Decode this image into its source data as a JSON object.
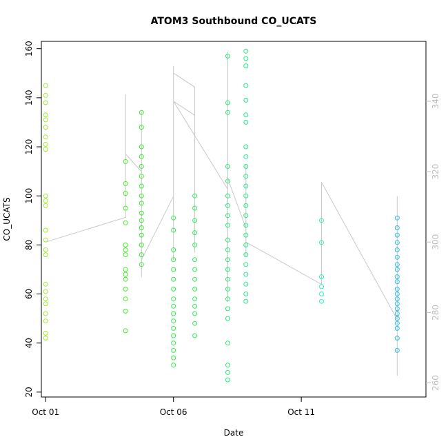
{
  "chart_data": {
    "type": "scatter",
    "title": "ATOM3 Southbound CO_UCATS",
    "xlabel": "Date",
    "ylabel": "CO_UCATS",
    "x_ticks": [
      "Oct 01",
      "Oct 06",
      "Oct 11"
    ],
    "y_ticks": [
      20,
      40,
      60,
      80,
      100,
      120,
      140,
      160
    ],
    "y2_ticks": [
      260,
      280,
      300,
      320,
      340
    ],
    "xlim": [
      "2016-09-30T20:00",
      "2016-10-15T21:00"
    ],
    "ylim": [
      18,
      163
    ],
    "y2lim": [
      256,
      357
    ],
    "grid": false,
    "legend": "none",
    "colors": {
      "secondary_line": "#c8c8c8",
      "right_axis": "#bdbdbd",
      "color_ramp": [
        "#a0ee2a",
        "#33ee22",
        "#22ee77",
        "#22eecc",
        "#22aaee"
      ]
    },
    "series": [
      {
        "type": "scatter",
        "marker": "open-circle",
        "points": [
          {
            "t": "2016-10-01T00:00",
            "y": 145
          },
          {
            "t": "2016-10-01T00:00",
            "y": 141
          },
          {
            "t": "2016-10-01T00:00",
            "y": 138
          },
          {
            "t": "2016-10-01T00:00",
            "y": 133
          },
          {
            "t": "2016-10-01T00:00",
            "y": 131
          },
          {
            "t": "2016-10-01T00:00",
            "y": 128
          },
          {
            "t": "2016-10-01T00:00",
            "y": 124
          },
          {
            "t": "2016-10-01T00:00",
            "y": 121
          },
          {
            "t": "2016-10-01T00:00",
            "y": 119
          },
          {
            "t": "2016-10-01T00:00",
            "y": 100
          },
          {
            "t": "2016-10-01T00:00",
            "y": 98
          },
          {
            "t": "2016-10-01T00:00",
            "y": 96
          },
          {
            "t": "2016-10-01T00:00",
            "y": 86
          },
          {
            "t": "2016-10-01T00:00",
            "y": 82
          },
          {
            "t": "2016-10-01T00:00",
            "y": 78
          },
          {
            "t": "2016-10-01T00:00",
            "y": 76
          },
          {
            "t": "2016-10-01T00:00",
            "y": 64
          },
          {
            "t": "2016-10-01T00:00",
            "y": 61
          },
          {
            "t": "2016-10-01T00:00",
            "y": 58
          },
          {
            "t": "2016-10-01T00:00",
            "y": 56
          },
          {
            "t": "2016-10-01T00:00",
            "y": 52
          },
          {
            "t": "2016-10-01T00:00",
            "y": 49
          },
          {
            "t": "2016-10-01T00:00",
            "y": 44
          },
          {
            "t": "2016-10-01T00:00",
            "y": 42
          },
          {
            "t": "2016-10-04T03:00",
            "y": 114
          },
          {
            "t": "2016-10-04T03:00",
            "y": 105
          },
          {
            "t": "2016-10-04T03:00",
            "y": 101
          },
          {
            "t": "2016-10-04T03:00",
            "y": 95
          },
          {
            "t": "2016-10-04T03:00",
            "y": 89
          },
          {
            "t": "2016-10-04T03:00",
            "y": 80
          },
          {
            "t": "2016-10-04T03:00",
            "y": 78
          },
          {
            "t": "2016-10-04T03:00",
            "y": 76
          },
          {
            "t": "2016-10-04T03:00",
            "y": 70
          },
          {
            "t": "2016-10-04T03:00",
            "y": 68
          },
          {
            "t": "2016-10-04T03:00",
            "y": 66
          },
          {
            "t": "2016-10-04T03:00",
            "y": 62
          },
          {
            "t": "2016-10-04T03:00",
            "y": 58
          },
          {
            "t": "2016-10-04T03:00",
            "y": 53
          },
          {
            "t": "2016-10-04T03:00",
            "y": 45
          },
          {
            "t": "2016-10-04T18:00",
            "y": 134
          },
          {
            "t": "2016-10-04T18:00",
            "y": 128
          },
          {
            "t": "2016-10-04T18:00",
            "y": 120
          },
          {
            "t": "2016-10-04T18:00",
            "y": 116
          },
          {
            "t": "2016-10-04T18:00",
            "y": 112
          },
          {
            "t": "2016-10-04T18:00",
            "y": 108
          },
          {
            "t": "2016-10-04T18:00",
            "y": 104
          },
          {
            "t": "2016-10-04T18:00",
            "y": 100
          },
          {
            "t": "2016-10-04T18:00",
            "y": 97
          },
          {
            "t": "2016-10-04T18:00",
            "y": 93
          },
          {
            "t": "2016-10-04T18:00",
            "y": 90
          },
          {
            "t": "2016-10-04T18:00",
            "y": 87
          },
          {
            "t": "2016-10-04T18:00",
            "y": 84
          },
          {
            "t": "2016-10-04T18:00",
            "y": 80
          },
          {
            "t": "2016-10-04T18:00",
            "y": 76
          },
          {
            "t": "2016-10-04T18:00",
            "y": 72
          },
          {
            "t": "2016-10-06T00:00",
            "y": 91
          },
          {
            "t": "2016-10-06T00:00",
            "y": 86
          },
          {
            "t": "2016-10-06T00:00",
            "y": 78
          },
          {
            "t": "2016-10-06T00:00",
            "y": 74
          },
          {
            "t": "2016-10-06T00:00",
            "y": 70
          },
          {
            "t": "2016-10-06T00:00",
            "y": 66
          },
          {
            "t": "2016-10-06T00:00",
            "y": 62
          },
          {
            "t": "2016-10-06T00:00",
            "y": 58
          },
          {
            "t": "2016-10-06T00:00",
            "y": 55
          },
          {
            "t": "2016-10-06T00:00",
            "y": 52
          },
          {
            "t": "2016-10-06T00:00",
            "y": 49
          },
          {
            "t": "2016-10-06T00:00",
            "y": 46
          },
          {
            "t": "2016-10-06T00:00",
            "y": 43
          },
          {
            "t": "2016-10-06T00:00",
            "y": 40
          },
          {
            "t": "2016-10-06T00:00",
            "y": 37
          },
          {
            "t": "2016-10-06T00:00",
            "y": 34
          },
          {
            "t": "2016-10-06T00:00",
            "y": 31
          },
          {
            "t": "2016-10-06T20:00",
            "y": 100
          },
          {
            "t": "2016-10-06T20:00",
            "y": 95
          },
          {
            "t": "2016-10-06T20:00",
            "y": 90
          },
          {
            "t": "2016-10-06T20:00",
            "y": 85
          },
          {
            "t": "2016-10-06T20:00",
            "y": 80
          },
          {
            "t": "2016-10-06T20:00",
            "y": 74
          },
          {
            "t": "2016-10-06T20:00",
            "y": 70
          },
          {
            "t": "2016-10-06T20:00",
            "y": 66
          },
          {
            "t": "2016-10-06T20:00",
            "y": 62
          },
          {
            "t": "2016-10-06T20:00",
            "y": 58
          },
          {
            "t": "2016-10-06T20:00",
            "y": 55
          },
          {
            "t": "2016-10-06T20:00",
            "y": 52
          },
          {
            "t": "2016-10-06T20:00",
            "y": 48
          },
          {
            "t": "2016-10-06T20:00",
            "y": 43
          },
          {
            "t": "2016-10-08T03:00",
            "y": 157
          },
          {
            "t": "2016-10-08T03:00",
            "y": 138
          },
          {
            "t": "2016-10-08T03:00",
            "y": 134
          },
          {
            "t": "2016-10-08T03:00",
            "y": 112
          },
          {
            "t": "2016-10-08T03:00",
            "y": 106
          },
          {
            "t": "2016-10-08T03:00",
            "y": 100
          },
          {
            "t": "2016-10-08T03:00",
            "y": 96
          },
          {
            "t": "2016-10-08T03:00",
            "y": 92
          },
          {
            "t": "2016-10-08T03:00",
            "y": 88
          },
          {
            "t": "2016-10-08T03:00",
            "y": 82
          },
          {
            "t": "2016-10-08T03:00",
            "y": 78
          },
          {
            "t": "2016-10-08T03:00",
            "y": 74
          },
          {
            "t": "2016-10-08T03:00",
            "y": 70
          },
          {
            "t": "2016-10-08T03:00",
            "y": 66
          },
          {
            "t": "2016-10-08T03:00",
            "y": 62
          },
          {
            "t": "2016-10-08T03:00",
            "y": 58
          },
          {
            "t": "2016-10-08T03:00",
            "y": 54
          },
          {
            "t": "2016-10-08T03:00",
            "y": 50
          },
          {
            "t": "2016-10-08T03:00",
            "y": 40
          },
          {
            "t": "2016-10-08T03:00",
            "y": 31
          },
          {
            "t": "2016-10-08T03:00",
            "y": 28
          },
          {
            "t": "2016-10-08T03:00",
            "y": 25
          },
          {
            "t": "2016-10-08T20:00",
            "y": 159
          },
          {
            "t": "2016-10-08T20:00",
            "y": 156
          },
          {
            "t": "2016-10-08T20:00",
            "y": 153
          },
          {
            "t": "2016-10-08T20:00",
            "y": 145
          },
          {
            "t": "2016-10-08T20:00",
            "y": 139
          },
          {
            "t": "2016-10-08T20:00",
            "y": 133
          },
          {
            "t": "2016-10-08T20:00",
            "y": 130
          },
          {
            "t": "2016-10-08T20:00",
            "y": 120
          },
          {
            "t": "2016-10-08T20:00",
            "y": 116
          },
          {
            "t": "2016-10-08T20:00",
            "y": 112
          },
          {
            "t": "2016-10-08T20:00",
            "y": 108
          },
          {
            "t": "2016-10-08T20:00",
            "y": 104
          },
          {
            "t": "2016-10-08T20:00",
            "y": 100
          },
          {
            "t": "2016-10-08T20:00",
            "y": 96
          },
          {
            "t": "2016-10-08T20:00",
            "y": 92
          },
          {
            "t": "2016-10-08T20:00",
            "y": 88
          },
          {
            "t": "2016-10-08T20:00",
            "y": 84
          },
          {
            "t": "2016-10-08T20:00",
            "y": 80
          },
          {
            "t": "2016-10-08T20:00",
            "y": 76
          },
          {
            "t": "2016-10-08T20:00",
            "y": 72
          },
          {
            "t": "2016-10-08T20:00",
            "y": 68
          },
          {
            "t": "2016-10-08T20:00",
            "y": 64
          },
          {
            "t": "2016-10-08T20:00",
            "y": 60
          },
          {
            "t": "2016-10-08T20:00",
            "y": 57
          },
          {
            "t": "2016-10-11T19:00",
            "y": 90
          },
          {
            "t": "2016-10-11T19:00",
            "y": 81
          },
          {
            "t": "2016-10-11T19:00",
            "y": 67
          },
          {
            "t": "2016-10-11T19:00",
            "y": 63
          },
          {
            "t": "2016-10-11T19:00",
            "y": 60
          },
          {
            "t": "2016-10-11T19:00",
            "y": 57
          },
          {
            "t": "2016-10-14T18:00",
            "y": 91
          },
          {
            "t": "2016-10-14T18:00",
            "y": 87
          },
          {
            "t": "2016-10-14T18:00",
            "y": 84
          },
          {
            "t": "2016-10-14T18:00",
            "y": 81
          },
          {
            "t": "2016-10-14T18:00",
            "y": 78
          },
          {
            "t": "2016-10-14T18:00",
            "y": 75
          },
          {
            "t": "2016-10-14T18:00",
            "y": 72
          },
          {
            "t": "2016-10-14T18:00",
            "y": 70
          },
          {
            "t": "2016-10-14T18:00",
            "y": 67
          },
          {
            "t": "2016-10-14T18:00",
            "y": 65
          },
          {
            "t": "2016-10-14T18:00",
            "y": 62
          },
          {
            "t": "2016-10-14T18:00",
            "y": 60
          },
          {
            "t": "2016-10-14T18:00",
            "y": 58
          },
          {
            "t": "2016-10-14T18:00",
            "y": 56
          },
          {
            "t": "2016-10-14T18:00",
            "y": 54
          },
          {
            "t": "2016-10-14T18:00",
            "y": 52
          },
          {
            "t": "2016-10-14T18:00",
            "y": 50
          },
          {
            "t": "2016-10-14T18:00",
            "y": 48
          },
          {
            "t": "2016-10-14T18:00",
            "y": 46
          },
          {
            "t": "2016-10-14T18:00",
            "y": 42
          },
          {
            "t": "2016-10-14T18:00",
            "y": 37
          }
        ]
      },
      {
        "type": "line",
        "axis": "right",
        "points": [
          {
            "t": "2016-10-01T00:00",
            "y": 300
          },
          {
            "t": "2016-10-04T03:00",
            "y": 307
          },
          {
            "t": "2016-10-04T03:00",
            "y": 342
          },
          {
            "t": "2016-10-04T03:00",
            "y": 325
          },
          {
            "t": "2016-10-04T18:00",
            "y": 320
          },
          {
            "t": "2016-10-04T18:00",
            "y": 337
          },
          {
            "t": "2016-10-04T18:00",
            "y": 297
          },
          {
            "t": "2016-10-04T18:00",
            "y": 330
          },
          {
            "t": "2016-10-04T18:00",
            "y": 294
          },
          {
            "t": "2016-10-04T18:00",
            "y": 334
          },
          {
            "t": "2016-10-04T18:00",
            "y": 290
          },
          {
            "t": "2016-10-04T18:00",
            "y": 322
          },
          {
            "t": "2016-10-04T18:00",
            "y": 295
          },
          {
            "t": "2016-10-06T00:00",
            "y": 313
          },
          {
            "t": "2016-10-06T00:00",
            "y": 347
          },
          {
            "t": "2016-10-06T00:00",
            "y": 295
          },
          {
            "t": "2016-10-06T00:00",
            "y": 350
          },
          {
            "t": "2016-10-06T00:00",
            "y": 306
          },
          {
            "t": "2016-10-06T00:00",
            "y": 341
          },
          {
            "t": "2016-10-06T00:00",
            "y": 299
          },
          {
            "t": "2016-10-06T00:00",
            "y": 339
          },
          {
            "t": "2016-10-06T00:00",
            "y": 348
          },
          {
            "t": "2016-10-06T20:00",
            "y": 344
          },
          {
            "t": "2016-10-06T20:00",
            "y": 301
          },
          {
            "t": "2016-10-06T20:00",
            "y": 338
          },
          {
            "t": "2016-10-06T20:00",
            "y": 297
          },
          {
            "t": "2016-10-06T20:00",
            "y": 343
          },
          {
            "t": "2016-10-06T20:00",
            "y": 303
          },
          {
            "t": "2016-10-06T20:00",
            "y": 336
          },
          {
            "t": "2016-10-06T00:00",
            "y": 340
          },
          {
            "t": "2016-10-08T03:00",
            "y": 315
          },
          {
            "t": "2016-10-08T03:00",
            "y": 354
          },
          {
            "t": "2016-10-08T03:00",
            "y": 283
          },
          {
            "t": "2016-10-08T03:00",
            "y": 318
          },
          {
            "t": "2016-10-08T20:00",
            "y": 304
          },
          {
            "t": "2016-10-08T20:00",
            "y": 322
          },
          {
            "t": "2016-10-08T20:00",
            "y": 296
          },
          {
            "t": "2016-10-08T20:00",
            "y": 315
          },
          {
            "t": "2016-10-08T20:00",
            "y": 300
          },
          {
            "t": "2016-10-11T19:00",
            "y": 288
          },
          {
            "t": "2016-10-11T19:00",
            "y": 317
          },
          {
            "t": "2016-10-14T18:00",
            "y": 278
          },
          {
            "t": "2016-10-14T18:00",
            "y": 313
          },
          {
            "t": "2016-10-14T18:00",
            "y": 262
          },
          {
            "t": "2016-10-14T18:00",
            "y": 309
          },
          {
            "t": "2016-10-14T18:00",
            "y": 270
          },
          {
            "t": "2016-10-14T18:00",
            "y": 311
          }
        ]
      }
    ]
  }
}
